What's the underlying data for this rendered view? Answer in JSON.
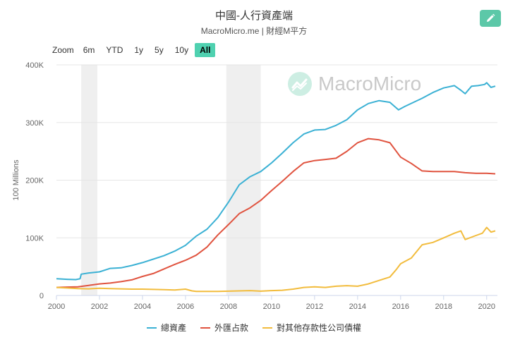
{
  "header": {
    "title": "中國-人行資產端",
    "subtitle": "MacroMicro.me | 財經M平方"
  },
  "zoom": {
    "label": "Zoom",
    "buttons": [
      "6m",
      "YTD",
      "1y",
      "5y",
      "10y",
      "All"
    ],
    "active": "All"
  },
  "watermark": {
    "text": "MacroMicro"
  },
  "colors": {
    "total": "#3bb1d4",
    "fx": "#e0533f",
    "other": "#f2bc3d",
    "band": "#efefef",
    "grid": "#e6e6e6",
    "accent": "#4fd1b0"
  },
  "chart_data": {
    "type": "line",
    "ylabel": "100 Millions",
    "xlim": [
      2000,
      2020.5
    ],
    "ylim": [
      0,
      400000
    ],
    "xticks": [
      2000,
      2002,
      2004,
      2006,
      2008,
      2010,
      2012,
      2014,
      2016,
      2018,
      2020
    ],
    "yticks": [
      0,
      100000,
      200000,
      300000,
      400000
    ],
    "ytick_labels": [
      "0",
      "100K",
      "200K",
      "300K",
      "400K"
    ],
    "shaded_periods": [
      [
        2001.15,
        2001.9
      ],
      [
        2007.9,
        2009.5
      ]
    ],
    "legend_position": "bottom",
    "grid": true,
    "series": [
      {
        "name": "總資產",
        "color_key": "total",
        "points": [
          [
            2000.0,
            29000
          ],
          [
            2000.5,
            28000
          ],
          [
            2000.9,
            27500
          ],
          [
            2001.1,
            29000
          ],
          [
            2001.15,
            37000
          ],
          [
            2001.5,
            39000
          ],
          [
            2002.0,
            41000
          ],
          [
            2002.5,
            47000
          ],
          [
            2003.0,
            48000
          ],
          [
            2003.5,
            52000
          ],
          [
            2004.0,
            57000
          ],
          [
            2004.5,
            63000
          ],
          [
            2005.0,
            69000
          ],
          [
            2005.5,
            77000
          ],
          [
            2006.0,
            87000
          ],
          [
            2006.5,
            103000
          ],
          [
            2007.0,
            115000
          ],
          [
            2007.5,
            135000
          ],
          [
            2008.0,
            162000
          ],
          [
            2008.5,
            192000
          ],
          [
            2009.0,
            206000
          ],
          [
            2009.5,
            215000
          ],
          [
            2010.0,
            230000
          ],
          [
            2010.5,
            247000
          ],
          [
            2011.0,
            265000
          ],
          [
            2011.5,
            280000
          ],
          [
            2012.0,
            287000
          ],
          [
            2012.5,
            288000
          ],
          [
            2013.0,
            295000
          ],
          [
            2013.5,
            305000
          ],
          [
            2014.0,
            322000
          ],
          [
            2014.5,
            333000
          ],
          [
            2015.0,
            338000
          ],
          [
            2015.5,
            335000
          ],
          [
            2015.9,
            322000
          ],
          [
            2016.2,
            328000
          ],
          [
            2016.6,
            335000
          ],
          [
            2017.0,
            342000
          ],
          [
            2017.5,
            352000
          ],
          [
            2018.0,
            360000
          ],
          [
            2018.5,
            364000
          ],
          [
            2018.8,
            356000
          ],
          [
            2019.0,
            350000
          ],
          [
            2019.3,
            363000
          ],
          [
            2019.6,
            364000
          ],
          [
            2019.9,
            366000
          ],
          [
            2020.0,
            369000
          ],
          [
            2020.2,
            361000
          ],
          [
            2020.4,
            363000
          ]
        ]
      },
      {
        "name": "外匯占款",
        "color_key": "fx",
        "points": [
          [
            2000.0,
            14000
          ],
          [
            2000.5,
            14500
          ],
          [
            2001.0,
            15000
          ],
          [
            2001.5,
            17500
          ],
          [
            2002.0,
            20000
          ],
          [
            2002.5,
            21500
          ],
          [
            2003.0,
            24000
          ],
          [
            2003.5,
            27000
          ],
          [
            2004.0,
            33000
          ],
          [
            2004.5,
            38000
          ],
          [
            2005.0,
            46000
          ],
          [
            2005.5,
            54000
          ],
          [
            2006.0,
            61000
          ],
          [
            2006.5,
            70000
          ],
          [
            2007.0,
            84000
          ],
          [
            2007.5,
            105000
          ],
          [
            2008.0,
            123000
          ],
          [
            2008.5,
            142000
          ],
          [
            2009.0,
            152000
          ],
          [
            2009.5,
            165000
          ],
          [
            2010.0,
            182000
          ],
          [
            2010.5,
            198000
          ],
          [
            2011.0,
            215000
          ],
          [
            2011.5,
            230000
          ],
          [
            2012.0,
            234000
          ],
          [
            2012.5,
            236000
          ],
          [
            2013.0,
            238000
          ],
          [
            2013.5,
            250000
          ],
          [
            2014.0,
            265000
          ],
          [
            2014.5,
            272000
          ],
          [
            2015.0,
            270000
          ],
          [
            2015.5,
            265000
          ],
          [
            2016.0,
            240000
          ],
          [
            2016.5,
            229000
          ],
          [
            2017.0,
            216000
          ],
          [
            2017.5,
            215000
          ],
          [
            2018.0,
            215000
          ],
          [
            2018.5,
            215000
          ],
          [
            2019.0,
            213000
          ],
          [
            2019.5,
            212000
          ],
          [
            2020.0,
            212000
          ],
          [
            2020.4,
            211000
          ]
        ]
      },
      {
        "name": "對其他存款性公司債權",
        "color_key": "other",
        "points": [
          [
            2000.0,
            14000
          ],
          [
            2000.5,
            13000
          ],
          [
            2001.0,
            12000
          ],
          [
            2001.5,
            11500
          ],
          [
            2002.0,
            12500
          ],
          [
            2002.5,
            12000
          ],
          [
            2003.0,
            11500
          ],
          [
            2003.5,
            11000
          ],
          [
            2004.0,
            11000
          ],
          [
            2004.5,
            10500
          ],
          [
            2005.0,
            10000
          ],
          [
            2005.5,
            9500
          ],
          [
            2006.0,
            11000
          ],
          [
            2006.3,
            8000
          ],
          [
            2006.5,
            7000
          ],
          [
            2007.0,
            7000
          ],
          [
            2007.5,
            7000
          ],
          [
            2008.0,
            7500
          ],
          [
            2008.5,
            8000
          ],
          [
            2009.0,
            8500
          ],
          [
            2009.5,
            7500
          ],
          [
            2010.0,
            8500
          ],
          [
            2010.5,
            9000
          ],
          [
            2011.0,
            11000
          ],
          [
            2011.5,
            14000
          ],
          [
            2012.0,
            15000
          ],
          [
            2012.5,
            14000
          ],
          [
            2013.0,
            16000
          ],
          [
            2013.5,
            17000
          ],
          [
            2014.0,
            16000
          ],
          [
            2014.5,
            20000
          ],
          [
            2015.0,
            26000
          ],
          [
            2015.5,
            32000
          ],
          [
            2015.8,
            45000
          ],
          [
            2016.0,
            55000
          ],
          [
            2016.5,
            65000
          ],
          [
            2017.0,
            88000
          ],
          [
            2017.5,
            92000
          ],
          [
            2018.0,
            100000
          ],
          [
            2018.5,
            108000
          ],
          [
            2018.8,
            112000
          ],
          [
            2019.0,
            97000
          ],
          [
            2019.5,
            104000
          ],
          [
            2019.8,
            108000
          ],
          [
            2020.0,
            118000
          ],
          [
            2020.2,
            110000
          ],
          [
            2020.4,
            112000
          ]
        ]
      }
    ]
  }
}
